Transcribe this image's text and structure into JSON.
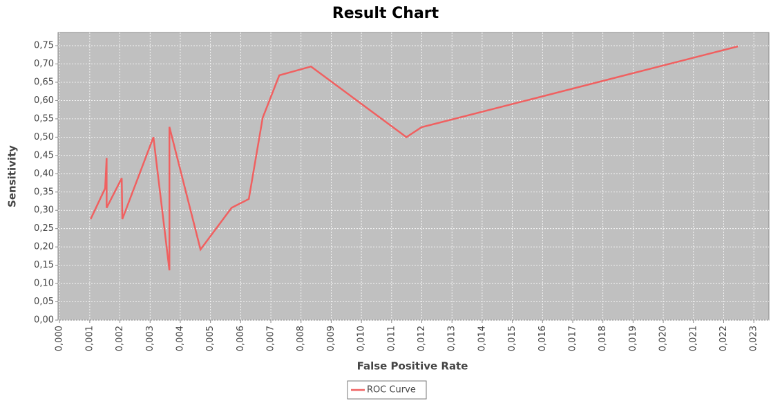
{
  "chart_data": {
    "type": "line",
    "title": "Result Chart",
    "x_label": "False Positive Rate",
    "y_label": "Sensitivity",
    "series": [
      {
        "name": "ROC Curve",
        "color": "#f06060",
        "x": [
          0.00103,
          0.00151,
          0.00156,
          0.00156,
          0.00206,
          0.00208,
          0.00311,
          0.00364,
          0.00364,
          0.00467,
          0.0057,
          0.00627,
          0.00673,
          0.00728,
          0.00833,
          0.01149,
          0.01199,
          0.02247
        ],
        "values": [
          0.276,
          0.36,
          0.443,
          0.307,
          0.388,
          0.276,
          0.5,
          0.136,
          0.528,
          0.193,
          0.307,
          0.331,
          0.553,
          0.669,
          0.693,
          0.5,
          0.527,
          0.748
        ]
      }
    ],
    "xlim": [
      -5e-05,
      0.0235
    ],
    "ylim": [
      0,
      0.786
    ],
    "xticks": [
      {
        "value": 0,
        "label": "0,000"
      },
      {
        "value": 0.001,
        "label": "0,001"
      },
      {
        "value": 0.002,
        "label": "0,002"
      },
      {
        "value": 0.003,
        "label": "0,003"
      },
      {
        "value": 0.004,
        "label": "0,004"
      },
      {
        "value": 0.005,
        "label": "0,005"
      },
      {
        "value": 0.006,
        "label": "0,006"
      },
      {
        "value": 0.007,
        "label": "0,007"
      },
      {
        "value": 0.008,
        "label": "0,008"
      },
      {
        "value": 0.009,
        "label": "0,009"
      },
      {
        "value": 0.01,
        "label": "0,010"
      },
      {
        "value": 0.011,
        "label": "0,011"
      },
      {
        "value": 0.012,
        "label": "0,012"
      },
      {
        "value": 0.013,
        "label": "0,013"
      },
      {
        "value": 0.014,
        "label": "0,014"
      },
      {
        "value": 0.015,
        "label": "0,015"
      },
      {
        "value": 0.016,
        "label": "0,016"
      },
      {
        "value": 0.017,
        "label": "0,017"
      },
      {
        "value": 0.018,
        "label": "0,018"
      },
      {
        "value": 0.019,
        "label": "0,019"
      },
      {
        "value": 0.02,
        "label": "0,020"
      },
      {
        "value": 0.021,
        "label": "0,021"
      },
      {
        "value": 0.022,
        "label": "0,022"
      },
      {
        "value": 0.023,
        "label": "0,023"
      }
    ],
    "yticks": [
      {
        "value": 0,
        "label": "0,00"
      },
      {
        "value": 0.05,
        "label": "0,05"
      },
      {
        "value": 0.1,
        "label": "0,10"
      },
      {
        "value": 0.15,
        "label": "0,15"
      },
      {
        "value": 0.2,
        "label": "0,20"
      },
      {
        "value": 0.25,
        "label": "0,25"
      },
      {
        "value": 0.3,
        "label": "0,30"
      },
      {
        "value": 0.35,
        "label": "0,35"
      },
      {
        "value": 0.4,
        "label": "0,40"
      },
      {
        "value": 0.45,
        "label": "0,45"
      },
      {
        "value": 0.5,
        "label": "0,50"
      },
      {
        "value": 0.55,
        "label": "0,55"
      },
      {
        "value": 0.6,
        "label": "0,60"
      },
      {
        "value": 0.65,
        "label": "0,65"
      },
      {
        "value": 0.7,
        "label": "0,70"
      },
      {
        "value": 0.75,
        "label": "0,75"
      }
    ],
    "grid": true
  }
}
